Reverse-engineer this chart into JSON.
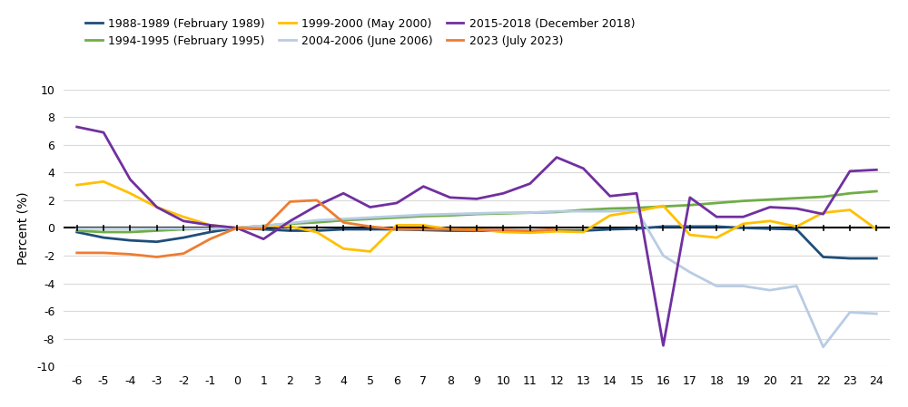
{
  "x": [
    -6,
    -5,
    -4,
    -3,
    -2,
    -1,
    0,
    1,
    2,
    3,
    4,
    5,
    6,
    7,
    8,
    9,
    10,
    11,
    12,
    13,
    14,
    15,
    16,
    17,
    18,
    19,
    20,
    21,
    22,
    23,
    24
  ],
  "series": [
    {
      "label": "1988-1989 (February 1989)",
      "color": "#1f4e79",
      "data": [
        -0.3,
        -0.7,
        -0.9,
        -1.0,
        -0.7,
        -0.3,
        0.0,
        -0.1,
        -0.2,
        -0.2,
        -0.1,
        -0.1,
        -0.1,
        -0.15,
        -0.2,
        -0.2,
        -0.2,
        -0.2,
        -0.2,
        -0.2,
        -0.1,
        -0.05,
        0.1,
        0.1,
        0.1,
        0.0,
        -0.05,
        -0.1,
        -2.1,
        -2.2,
        -2.2
      ]
    },
    {
      "label": "1994-1995 (February 1995)",
      "color": "#70ad47",
      "data": [
        -0.2,
        -0.3,
        -0.3,
        -0.2,
        -0.1,
        -0.05,
        0.0,
        0.15,
        0.3,
        0.4,
        0.55,
        0.65,
        0.75,
        0.85,
        0.9,
        1.0,
        1.05,
        1.1,
        1.15,
        1.3,
        1.4,
        1.45,
        1.55,
        1.65,
        1.8,
        1.95,
        2.05,
        2.15,
        2.25,
        2.5,
        2.65
      ]
    },
    {
      "label": "1999-2000 (May 2000)",
      "color": "#ffc000",
      "data": [
        3.1,
        3.35,
        2.5,
        1.5,
        0.8,
        0.2,
        0.0,
        0.15,
        0.1,
        -0.3,
        -1.5,
        -1.7,
        0.2,
        0.2,
        -0.1,
        -0.1,
        -0.3,
        -0.35,
        -0.25,
        -0.3,
        0.9,
        1.2,
        1.6,
        -0.5,
        -0.7,
        0.3,
        0.5,
        0.1,
        1.1,
        1.3,
        -0.1
      ]
    },
    {
      "label": "2004-2006 (June 2006)",
      "color": "#b8cce4",
      "data": [
        -0.05,
        -0.05,
        -0.05,
        -0.05,
        -0.05,
        -0.05,
        0.0,
        0.15,
        0.35,
        0.55,
        0.65,
        0.75,
        0.85,
        0.95,
        1.0,
        1.05,
        1.1,
        1.1,
        1.2,
        1.2,
        1.2,
        1.3,
        -2.0,
        -3.2,
        -4.2,
        -4.2,
        -4.5,
        -4.2,
        -8.6,
        -6.1,
        -6.2
      ]
    },
    {
      "label": "2015-2018 (December 2018)",
      "color": "#7030a0",
      "data": [
        7.3,
        6.9,
        3.5,
        1.5,
        0.5,
        0.2,
        0.0,
        -0.8,
        0.5,
        1.6,
        2.5,
        1.5,
        1.8,
        3.0,
        2.2,
        2.1,
        2.5,
        3.2,
        5.1,
        4.3,
        2.3,
        2.5,
        -8.5,
        2.2,
        0.8,
        0.8,
        1.5,
        1.4,
        1.0,
        4.1,
        4.2
      ]
    },
    {
      "label": "2023 (July 2023)",
      "color": "#ed7d31",
      "data": [
        -1.8,
        -1.8,
        -1.9,
        -2.1,
        -1.85,
        -0.8,
        0.0,
        -0.05,
        1.9,
        2.0,
        0.4,
        0.1,
        -0.1,
        -0.1,
        -0.1,
        -0.15,
        -0.15,
        -0.2,
        -0.1,
        null,
        null,
        null,
        null,
        null,
        null,
        null,
        null,
        null,
        null,
        null,
        null
      ]
    }
  ],
  "legend_order": [
    0,
    1,
    2,
    3,
    4,
    5
  ],
  "xlabel": "",
  "ylabel": "Percent (%)",
  "ylim": [
    -10,
    10
  ],
  "yticks": [
    -10,
    -8,
    -6,
    -4,
    -2,
    0,
    2,
    4,
    6,
    8,
    10
  ],
  "xlim": [
    -6,
    24
  ],
  "xticks": [
    -6,
    -5,
    -4,
    -3,
    -2,
    -1,
    0,
    1,
    2,
    3,
    4,
    5,
    6,
    7,
    8,
    9,
    10,
    11,
    12,
    13,
    14,
    15,
    16,
    17,
    18,
    19,
    20,
    21,
    22,
    23,
    24
  ],
  "background_color": "#ffffff",
  "grid_color": "#d9d9d9",
  "linewidth": 2.0,
  "tick_size": 0.18
}
